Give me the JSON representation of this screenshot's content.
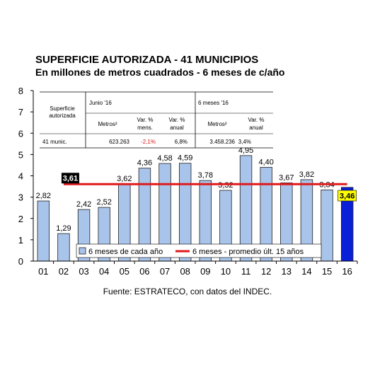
{
  "title": "SUPERFICIE AUTORIZADA - 41 MUNICIPIOS",
  "subtitle": "En millones de metros cuadrados - 6 meses de c/año",
  "source": "Fuente: ESTRATECO, con datos del INDEC.",
  "colors": {
    "bar": "#a9c4ea",
    "bar_highlight": "#0a1fd8",
    "average_line": "#e0191b",
    "bar_stroke": "#1f1f1f"
  },
  "table": {
    "row_header": "Superficie autorizada",
    "group1": "Junio '16",
    "group2": "6 meses '16",
    "col_metros": "Metros²",
    "col_var_mens": "Var. % mens.",
    "col_var_anual": "Var. % anual",
    "col_metros2": "Metros²",
    "col_var_anual2": "Var. % anual",
    "row_label": "41 munic.",
    "v_metros": "623.263",
    "v_var_mens": "-2,1%",
    "v_var_anual": "6,8%",
    "v_metros2": "3.458.236",
    "v_var_anual2": "3,4%"
  },
  "legend": {
    "bars": "6 meses de cada año",
    "line": "6 meses - promedio últ. 15 años"
  },
  "chart_data": {
    "type": "bar",
    "categories": [
      "01",
      "02",
      "03",
      "04",
      "05",
      "06",
      "07",
      "08",
      "09",
      "10",
      "11",
      "12",
      "13",
      "14",
      "15",
      "16"
    ],
    "values": [
      2.82,
      1.29,
      2.42,
      2.52,
      3.62,
      4.36,
      4.58,
      4.59,
      3.78,
      3.32,
      4.95,
      4.4,
      3.67,
      3.82,
      3.34,
      3.46
    ],
    "labels": [
      "2,82",
      "1,29",
      "2,42",
      "2,52",
      "3,62",
      "4,36",
      "4,58",
      "4,59",
      "3,78",
      "3,32",
      "4,95",
      "4,40",
      "3,67",
      "3,82",
      "3,34",
      "3,46"
    ],
    "highlight_index": 15,
    "average": 3.61,
    "average_label": "3,61",
    "ylim": [
      0,
      8
    ],
    "yticks": [
      0,
      1,
      2,
      3,
      4,
      5,
      6,
      7,
      8
    ],
    "grid": false
  }
}
